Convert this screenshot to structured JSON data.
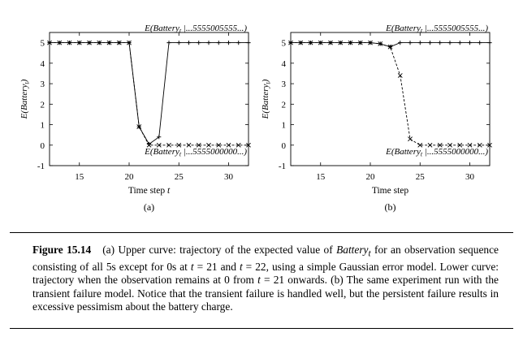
{
  "chart_data": [
    {
      "type": "line",
      "panel_label": "(a)",
      "xlabel": "Time step t",
      "ylabel": "E(Battery_t)",
      "xlim": [
        12,
        32
      ],
      "ylim": [
        -1,
        5.5
      ],
      "xticks": [
        15,
        20,
        25,
        30
      ],
      "yticks": [
        -1,
        0,
        1,
        2,
        3,
        4,
        5
      ],
      "grid": false,
      "series": [
        {
          "name": "E(Battery_t |...5555005555...)",
          "marker": "plus",
          "line": "solid",
          "x": [
            12,
            13,
            14,
            15,
            16,
            17,
            18,
            19,
            20,
            21,
            22,
            23,
            24,
            25,
            26,
            27,
            28,
            29,
            30,
            31,
            32
          ],
          "y": [
            5,
            5,
            5,
            5,
            5,
            5,
            5,
            5,
            5,
            0.9,
            0.05,
            0.4,
            5,
            5,
            5,
            5,
            5,
            5,
            5,
            5,
            5
          ]
        },
        {
          "name": "E(Battery_t |...5555000000...)",
          "marker": "cross",
          "line": "dashed",
          "x": [
            12,
            13,
            14,
            15,
            16,
            17,
            18,
            19,
            20,
            21,
            22,
            23,
            24,
            25,
            26,
            27,
            28,
            29,
            30,
            31,
            32
          ],
          "y": [
            5,
            5,
            5,
            5,
            5,
            5,
            5,
            5,
            5,
            0.9,
            0,
            0,
            0,
            0,
            0,
            0,
            0,
            0,
            0,
            0,
            0
          ]
        }
      ]
    },
    {
      "type": "line",
      "panel_label": "(b)",
      "xlabel": "Time step",
      "ylabel": "E(Battery_t)",
      "xlim": [
        12,
        32
      ],
      "ylim": [
        -1,
        5.5
      ],
      "xticks": [
        15,
        20,
        25,
        30
      ],
      "yticks": [
        -1,
        0,
        1,
        2,
        3,
        4,
        5
      ],
      "grid": false,
      "series": [
        {
          "name": "E(Battery_t |...5555005555...)",
          "marker": "plus",
          "line": "solid",
          "x": [
            12,
            13,
            14,
            15,
            16,
            17,
            18,
            19,
            20,
            21,
            22,
            23,
            24,
            25,
            26,
            27,
            28,
            29,
            30,
            31,
            32
          ],
          "y": [
            5,
            5,
            5,
            5,
            5,
            5,
            5,
            5,
            5,
            4.95,
            4.8,
            5,
            5,
            5,
            5,
            5,
            5,
            5,
            5,
            5,
            5
          ]
        },
        {
          "name": "E(Battery_t |...5555000000...)",
          "marker": "cross",
          "line": "dashed",
          "x": [
            12,
            13,
            14,
            15,
            16,
            17,
            18,
            19,
            20,
            21,
            22,
            23,
            24,
            25,
            26,
            27,
            28,
            29,
            30,
            31,
            32
          ],
          "y": [
            5,
            5,
            5,
            5,
            5,
            5,
            5,
            5,
            5,
            4.95,
            4.8,
            3.4,
            0.3,
            0,
            0,
            0,
            0,
            0,
            0,
            0,
            0
          ]
        }
      ]
    }
  ],
  "caption": {
    "label": "Figure 15.14",
    "part_a_1": "(a) Upper curve: trajectory of the expected value of ",
    "part_a_var": "Battery",
    "part_a_sub": "t",
    "part_a_2": " for an observation sequence consisting of all 5s except for 0s at ",
    "part_a_3": "t",
    "part_a_4": " = 21 and ",
    "part_a_5": "t",
    "part_a_6": " = 22, using a simple Gaussian error model. Lower curve: trajectory when the observation remains at 0 from ",
    "part_a_7": "t",
    "part_a_8": " = 21 onwards.",
    "part_b": "(b) The same experiment run with the transient failure model. Notice that the transient failure is handled well, but the persistent failure results in excessive pessimism about the battery charge."
  }
}
